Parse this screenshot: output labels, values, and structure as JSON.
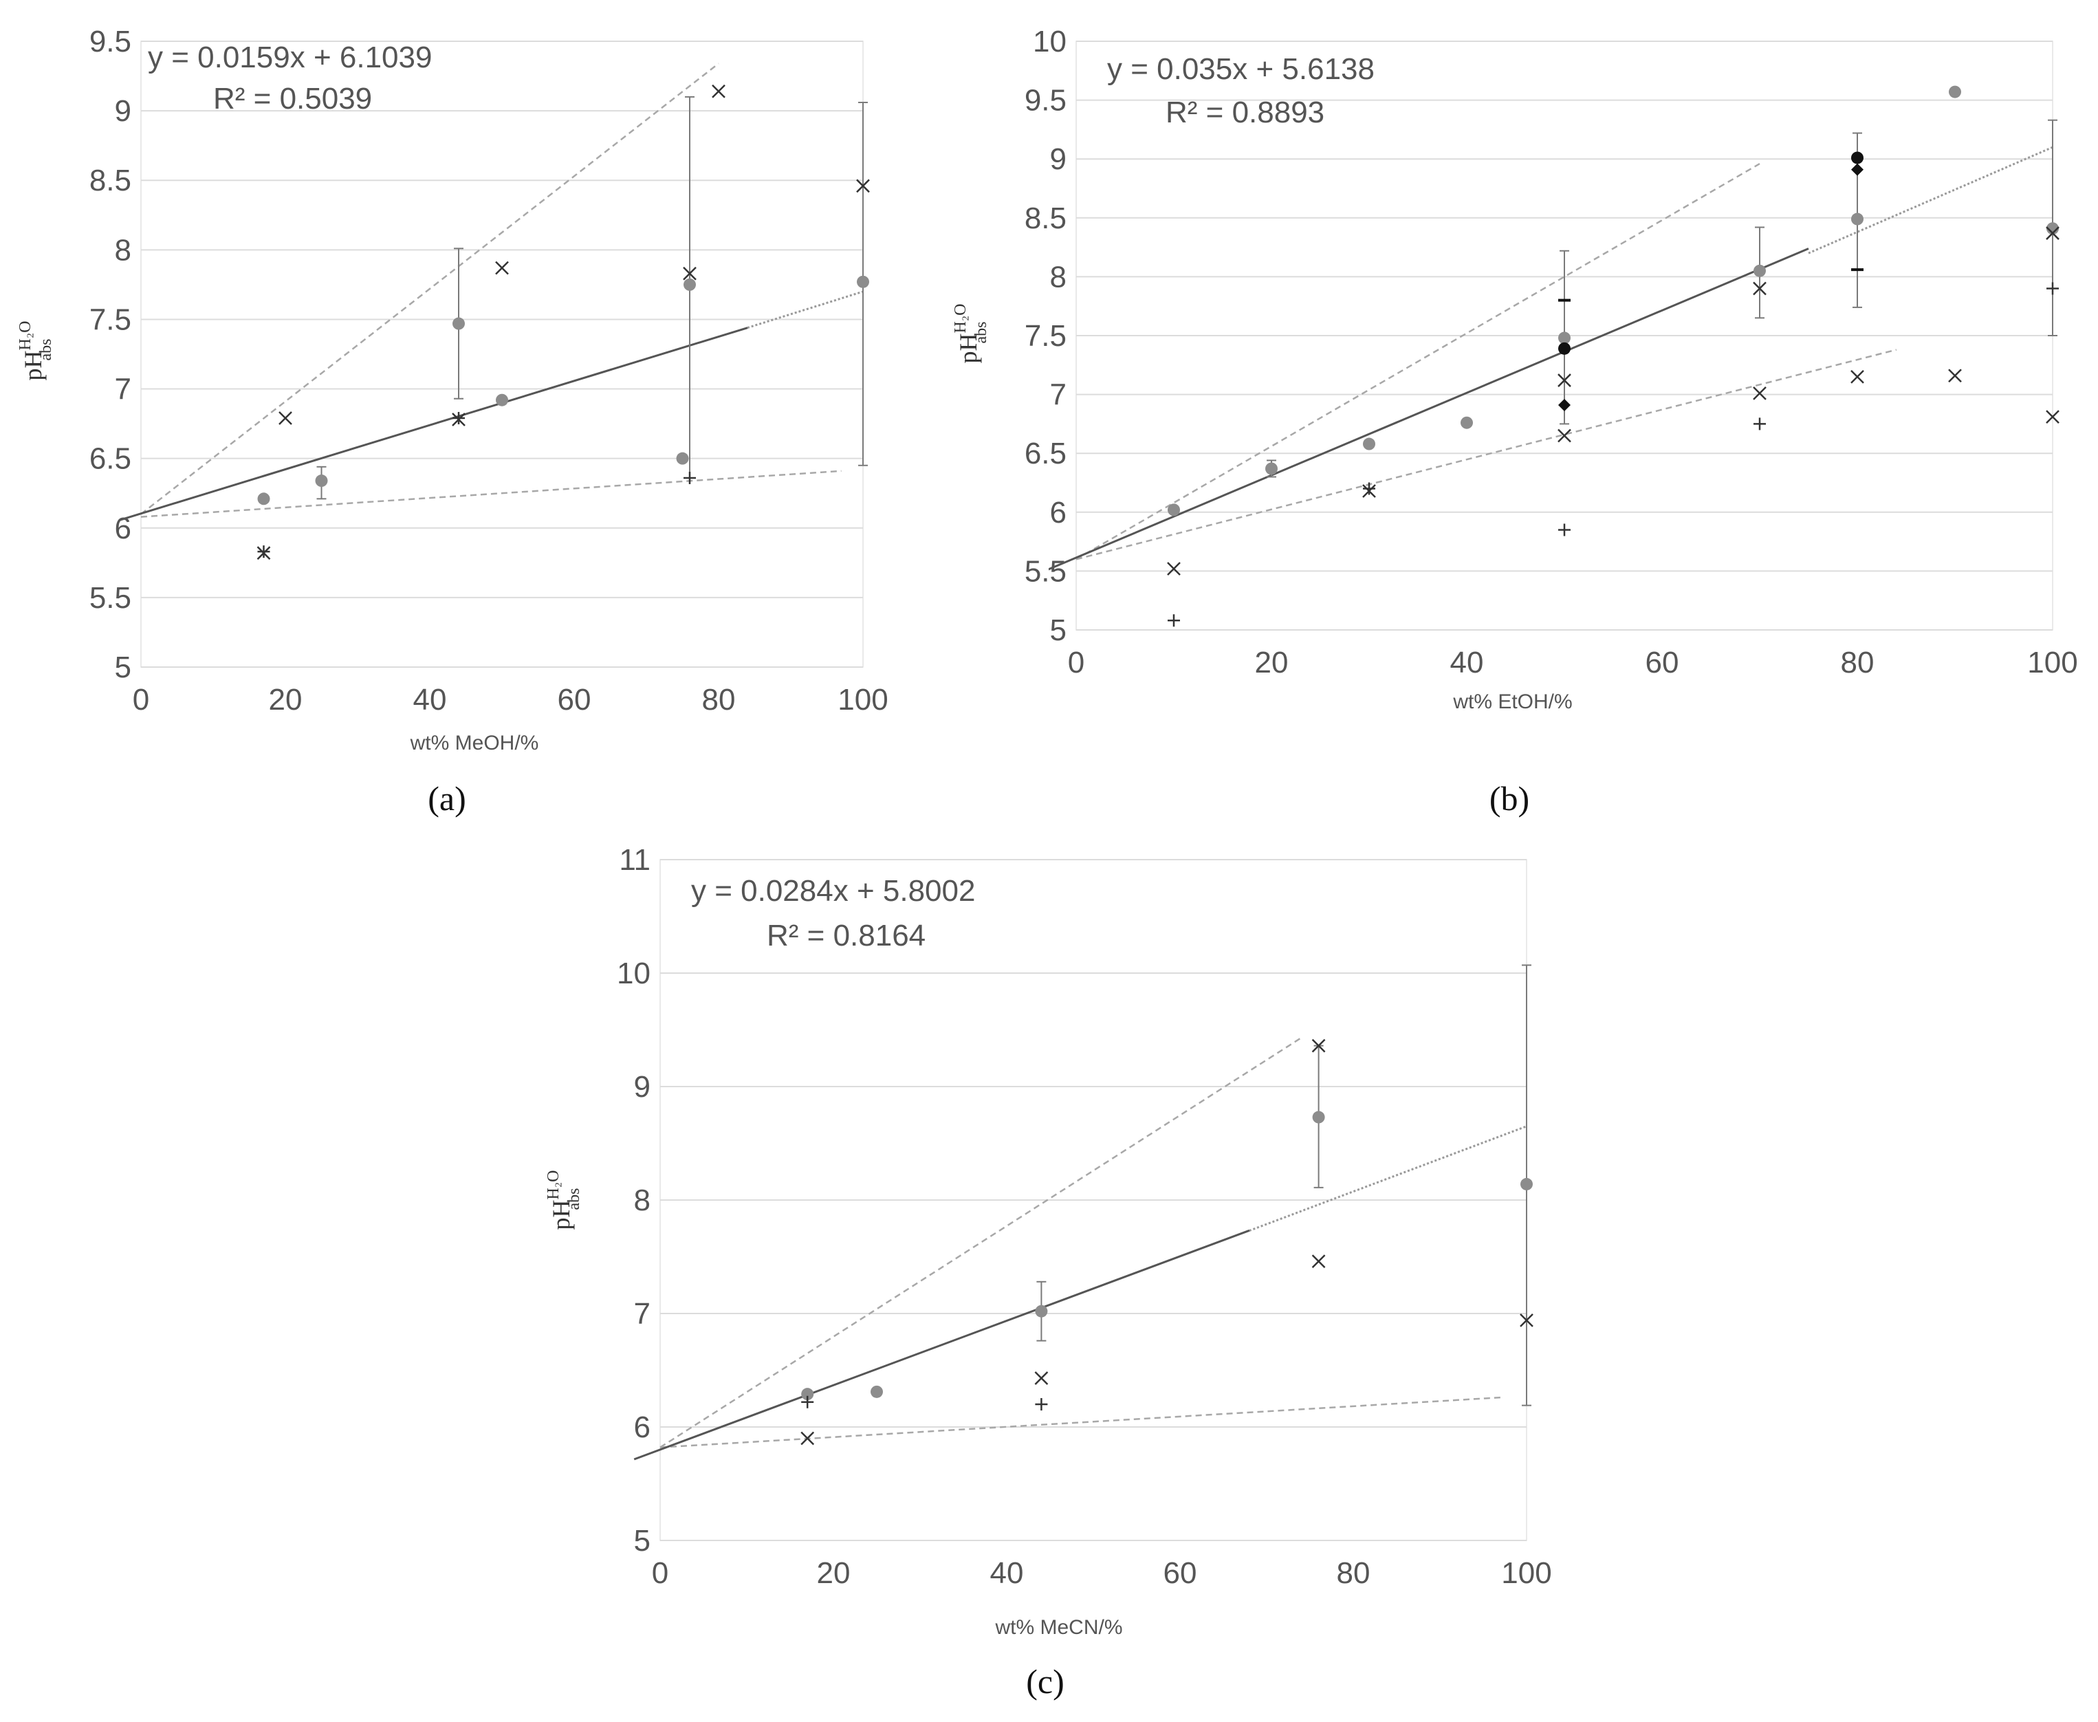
{
  "chart_data": [
    {
      "id": "a",
      "type": "scatter",
      "panel_label": "(a)",
      "xlabel": "wt% MeOH/%",
      "ylabel": {
        "main": "pH",
        "sup": "H₂O",
        "sub": "abs"
      },
      "xlim": [
        0,
        100
      ],
      "ylim": [
        5,
        9.5
      ],
      "xticks": [
        0,
        20,
        40,
        60,
        80,
        100
      ],
      "yticks": [
        "5",
        "5.5",
        "6",
        "6.5",
        "7",
        "7.5",
        "8",
        "8.5",
        "9",
        "9.5"
      ],
      "equation": "y = 0.0159x + 6.1039",
      "r2": "R² = 0.5039",
      "trendline": {
        "slope": 0.0159,
        "intercept": 6.1039,
        "x": [
          -3,
          84
        ]
      },
      "trend_extension": {
        "x": [
          84,
          100
        ],
        "y": [
          7.44,
          7.7
        ]
      },
      "bound_lines": [
        {
          "x": [
            0,
            80
          ],
          "y": [
            6.1,
            9.34
          ]
        },
        {
          "x": [
            0,
            97
          ],
          "y": [
            6.08,
            6.41
          ]
        }
      ],
      "series": [
        {
          "name": "mean",
          "marker": "circle",
          "color": "#8c8c8c",
          "points": [
            [
              17,
              6.21
            ],
            [
              25,
              6.34
            ],
            [
              44,
              7.47
            ],
            [
              50,
              6.92
            ],
            [
              75,
              6.5
            ],
            [
              76,
              7.75
            ],
            [
              100,
              7.77
            ]
          ]
        },
        {
          "name": "cross",
          "marker": "x",
          "color": "#333333",
          "points": [
            [
              17,
              5.82
            ],
            [
              20,
              6.79
            ],
            [
              44,
              6.78
            ],
            [
              50,
              7.87
            ],
            [
              76,
              7.83
            ],
            [
              80,
              9.14
            ],
            [
              100,
              8.46
            ]
          ]
        },
        {
          "name": "plus",
          "marker": "plus",
          "color": "#333333",
          "points": [
            [
              17,
              5.83
            ],
            [
              44,
              6.79
            ],
            [
              76,
              6.36
            ]
          ]
        }
      ],
      "error_bars": [
        {
          "x": 25,
          "low": 6.21,
          "high": 6.44
        },
        {
          "x": 44,
          "low": 6.93,
          "high": 8.01
        },
        {
          "x": 76,
          "low": 6.36,
          "high": 9.1
        },
        {
          "x": 100,
          "low": 6.45,
          "high": 9.06
        }
      ]
    },
    {
      "id": "b",
      "type": "scatter",
      "panel_label": "(b)",
      "xlabel": "wt% EtOH/%",
      "ylabel": {
        "main": "pH",
        "sup": "H₂O",
        "sub": "abs"
      },
      "xlim": [
        0,
        100
      ],
      "ylim": [
        5,
        10
      ],
      "xticks": [
        0,
        20,
        40,
        60,
        80,
        100
      ],
      "yticks": [
        "5",
        "5.5",
        "6",
        "6.5",
        "7",
        "7.5",
        "8",
        "8.5",
        "9",
        "9.5",
        "10"
      ],
      "equation": "y = 0.035x + 5.6138",
      "r2": "R² = 0.8893",
      "trendline": {
        "slope": 0.035,
        "intercept": 5.6138,
        "x": [
          -4,
          75
        ]
      },
      "trend_extension": {
        "x": [
          75,
          100
        ],
        "y": [
          8.2,
          9.1
        ]
      },
      "bound_lines": [
        {
          "x": [
            0,
            70
          ],
          "y": [
            5.6,
            8.96
          ]
        },
        {
          "x": [
            0,
            84
          ],
          "y": [
            5.6,
            7.38
          ]
        }
      ],
      "series": [
        {
          "name": "mean",
          "marker": "circle",
          "color": "#8c8c8c",
          "points": [
            [
              10,
              6.02
            ],
            [
              20,
              6.37
            ],
            [
              30,
              6.58
            ],
            [
              40,
              6.76
            ],
            [
              50,
              7.48
            ],
            [
              70,
              8.05
            ],
            [
              80,
              8.49
            ],
            [
              90,
              9.57
            ],
            [
              100,
              8.41
            ]
          ]
        },
        {
          "name": "cross",
          "marker": "x",
          "color": "#333333",
          "points": [
            [
              10,
              5.52
            ],
            [
              30,
              6.18
            ],
            [
              50,
              7.12
            ],
            [
              50,
              6.65
            ],
            [
              70,
              7.9
            ],
            [
              70,
              7.01
            ],
            [
              80,
              7.15
            ],
            [
              90,
              7.16
            ],
            [
              100,
              8.37
            ],
            [
              100,
              6.81
            ]
          ]
        },
        {
          "name": "plus",
          "marker": "plus",
          "color": "#333333",
          "points": [
            [
              10,
              5.08
            ],
            [
              30,
              6.2
            ],
            [
              50,
              5.85
            ],
            [
              70,
              6.75
            ],
            [
              100,
              7.9
            ]
          ]
        },
        {
          "name": "dash",
          "marker": "dash",
          "color": "#111111",
          "points": [
            [
              50,
              7.8
            ],
            [
              80,
              8.06
            ]
          ]
        },
        {
          "name": "filled-circle",
          "marker": "circle",
          "color": "#111111",
          "points": [
            [
              50,
              7.39
            ],
            [
              80,
              9.01
            ]
          ]
        },
        {
          "name": "diamond",
          "marker": "diamond",
          "color": "#111111",
          "points": [
            [
              50,
              6.91
            ],
            [
              80,
              8.91
            ]
          ]
        }
      ],
      "error_bars": [
        {
          "x": 20,
          "low": 6.3,
          "high": 6.44
        },
        {
          "x": 50,
          "low": 6.75,
          "high": 8.22
        },
        {
          "x": 70,
          "low": 7.65,
          "high": 8.42
        },
        {
          "x": 80,
          "low": 7.74,
          "high": 9.22
        },
        {
          "x": 100,
          "low": 7.5,
          "high": 9.33
        }
      ]
    },
    {
      "id": "c",
      "type": "scatter",
      "panel_label": "(c)",
      "xlabel": "wt% MeCN/%",
      "ylabel": {
        "main": "pH",
        "sup": "H₂O",
        "sub": "abs"
      },
      "xlim": [
        0,
        100
      ],
      "ylim": [
        5,
        11
      ],
      "xticks": [
        0,
        20,
        40,
        60,
        80,
        100
      ],
      "yticks": [
        "5",
        "6",
        "7",
        "8",
        "9",
        "10",
        "11"
      ],
      "equation": "y = 0.0284x + 5.8002",
      "r2": "R² = 0.8164",
      "trendline": {
        "slope": 0.0284,
        "intercept": 5.8002,
        "x": [
          -3,
          68
        ]
      },
      "trend_extension": {
        "x": [
          68,
          100
        ],
        "y": [
          7.73,
          8.65
        ]
      },
      "bound_lines": [
        {
          "x": [
            0,
            74
          ],
          "y": [
            5.82,
            9.43
          ]
        },
        {
          "x": [
            0,
            97
          ],
          "y": [
            5.82,
            6.26
          ]
        }
      ],
      "series": [
        {
          "name": "mean",
          "marker": "circle",
          "color": "#8c8c8c",
          "points": [
            [
              17,
              6.29
            ],
            [
              25,
              6.31
            ],
            [
              44,
              7.02
            ],
            [
              76,
              8.73
            ],
            [
              100,
              8.14
            ]
          ]
        },
        {
          "name": "cross",
          "marker": "x",
          "color": "#333333",
          "points": [
            [
              17,
              5.9
            ],
            [
              44,
              6.43
            ],
            [
              76,
              9.36
            ],
            [
              76,
              7.46
            ],
            [
              100,
              6.94
            ]
          ]
        },
        {
          "name": "plus",
          "marker": "plus",
          "color": "#333333",
          "points": [
            [
              17,
              6.22
            ],
            [
              44,
              6.2
            ]
          ]
        }
      ],
      "error_bars": [
        {
          "x": 44,
          "low": 6.76,
          "high": 7.28
        },
        {
          "x": 76,
          "low": 8.11,
          "high": 9.36
        },
        {
          "x": 100,
          "low": 6.19,
          "high": 10.07
        }
      ]
    }
  ]
}
